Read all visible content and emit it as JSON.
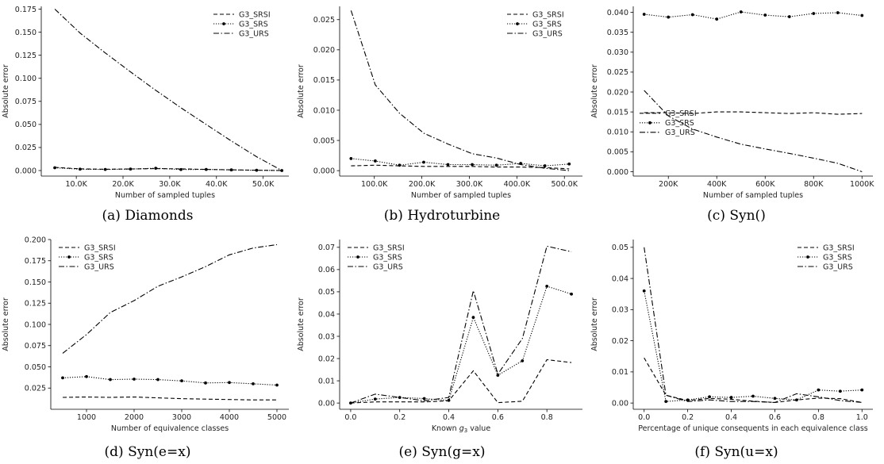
{
  "chart_data": [
    {
      "type": "line",
      "caption": "(a) Diamonds",
      "xlabel": "Number of sampled tuples",
      "ylabel": "Absolute error",
      "xlim": [
        2500,
        55500
      ],
      "ylim": [
        -0.006,
        0.178
      ],
      "xticks": [
        10000,
        20000,
        30000,
        40000,
        50000
      ],
      "xtick_labels": [
        "10.0K",
        "20.0K",
        "30.0K",
        "40.0K",
        "50.0K"
      ],
      "yticks": [
        0,
        0.025,
        0.05,
        0.075,
        0.1,
        0.125,
        0.15,
        0.175
      ],
      "ytick_labels": [
        "0.000",
        "0.025",
        "0.050",
        "0.075",
        "0.100",
        "0.125",
        "0.150",
        "0.175"
      ],
      "legend_position": "top-right",
      "x": [
        5400,
        10800,
        16200,
        21600,
        27000,
        32400,
        37800,
        43200,
        48600,
        54000
      ],
      "series": [
        {
          "name": "G3_SRSI",
          "style": "dashed",
          "values": [
            0.0035,
            0.0018,
            0.0014,
            0.0017,
            0.0021,
            0.0018,
            0.0012,
            0.0008,
            0.0004,
            0.0
          ]
        },
        {
          "name": "G3_SRS",
          "style": "dotted-marker",
          "values": [
            0.003,
            0.0015,
            0.0012,
            0.0016,
            0.0025,
            0.0011,
            0.0012,
            0.0007,
            0.0003,
            0.0
          ]
        },
        {
          "name": "G3_URS",
          "style": "dashdot",
          "values": [
            0.175,
            0.149,
            0.1275,
            0.107,
            0.087,
            0.068,
            0.05,
            0.032,
            0.015,
            0.0
          ]
        }
      ]
    },
    {
      "type": "line",
      "caption": "(b) Hydroturbine",
      "xlabel": "Number of sampled tuples",
      "ylabel": "Absolute error",
      "xlim": [
        27000,
        538000
      ],
      "ylim": [
        -0.0009,
        0.0272
      ],
      "xticks": [
        100000,
        200000,
        300000,
        400000,
        500000
      ],
      "xtick_labels": [
        "100.0K",
        "200.0K",
        "300.0K",
        "400.0K",
        "500.0K"
      ],
      "yticks": [
        0,
        0.005,
        0.01,
        0.015,
        0.02,
        0.025
      ],
      "ytick_labels": [
        "0.000",
        "0.005",
        "0.010",
        "0.015",
        "0.020",
        "0.025"
      ],
      "legend_position": "top-right",
      "x": [
        51000,
        102000,
        153000,
        204000,
        255000,
        306000,
        357000,
        408000,
        459000,
        510000
      ],
      "series": [
        {
          "name": "G3_SRSI",
          "style": "dashed",
          "values": [
            0.0008,
            0.0009,
            0.0008,
            0.0007,
            0.0007,
            0.0007,
            0.0006,
            0.0006,
            0.0005,
            0.0003
          ]
        },
        {
          "name": "G3_SRS",
          "style": "dotted-marker",
          "values": [
            0.002,
            0.0016,
            0.0009,
            0.0014,
            0.001,
            0.001,
            0.0009,
            0.0012,
            0.0008,
            0.0011
          ]
        },
        {
          "name": "G3_URS",
          "style": "dashdot",
          "values": [
            0.0265,
            0.0142,
            0.0095,
            0.0062,
            0.0044,
            0.0028,
            0.0021,
            0.001,
            0.0004,
            0.0
          ]
        }
      ]
    },
    {
      "type": "line",
      "caption": "(c) Syn()",
      "xlabel": "Number of sampled tuples",
      "ylabel": "Absolute error",
      "xlim": [
        55000,
        1045000
      ],
      "ylim": [
        -0.0011,
        0.0415
      ],
      "xticks": [
        200000,
        400000,
        600000,
        800000,
        1000000
      ],
      "xtick_labels": [
        "200K",
        "400K",
        "600K",
        "800K",
        "1000K"
      ],
      "yticks": [
        0,
        0.005,
        0.01,
        0.015,
        0.02,
        0.025,
        0.03,
        0.035,
        0.04
      ],
      "ytick_labels": [
        "0.000",
        "0.005",
        "0.010",
        "0.015",
        "0.020",
        "0.025",
        "0.030",
        "0.035",
        "0.040"
      ],
      "legend_position": "middle-left",
      "x": [
        100000,
        200000,
        300000,
        400000,
        500000,
        600000,
        700000,
        800000,
        900000,
        1000000
      ],
      "series": [
        {
          "name": "G3_SRSI",
          "style": "dashed",
          "values": [
            0.0148,
            0.0148,
            0.0146,
            0.015,
            0.015,
            0.0148,
            0.0146,
            0.0148,
            0.0144,
            0.0146
          ]
        },
        {
          "name": "G3_SRS",
          "style": "dotted-marker",
          "values": [
            0.0395,
            0.0388,
            0.0394,
            0.0383,
            0.0401,
            0.0393,
            0.0389,
            0.0397,
            0.0399,
            0.0392
          ]
        },
        {
          "name": "G3_URS",
          "style": "dashdot",
          "values": [
            0.0204,
            0.014,
            0.0107,
            0.0087,
            0.0069,
            0.0057,
            0.0046,
            0.0034,
            0.0021,
            0.0
          ]
        }
      ]
    },
    {
      "type": "line",
      "caption": "(d) Syn(e=x)",
      "xlabel": "Number of equivalence classes",
      "ylabel": "Absolute error",
      "xlim": [
        250,
        5250
      ],
      "ylim": [
        0,
        0.2
      ],
      "xticks": [
        1000,
        2000,
        3000,
        4000,
        5000
      ],
      "xtick_labels": [
        "1000",
        "2000",
        "3000",
        "4000",
        "5000"
      ],
      "yticks": [
        0.025,
        0.05,
        0.075,
        0.1,
        0.125,
        0.15,
        0.175,
        0.2
      ],
      "ytick_labels": [
        "0.025",
        "0.050",
        "0.075",
        "0.100",
        "0.125",
        "0.150",
        "0.175",
        "0.200"
      ],
      "legend_position": "top-left",
      "x": [
        500,
        1000,
        1500,
        2000,
        2500,
        3000,
        3500,
        4000,
        4500,
        5000
      ],
      "series": [
        {
          "name": "G3_SRSI",
          "style": "dashed",
          "values": [
            0.014,
            0.0145,
            0.014,
            0.0145,
            0.0135,
            0.0125,
            0.012,
            0.0115,
            0.011,
            0.011
          ]
        },
        {
          "name": "G3_SRS",
          "style": "dotted-marker",
          "values": [
            0.037,
            0.0385,
            0.035,
            0.0355,
            0.035,
            0.0335,
            0.031,
            0.0315,
            0.03,
            0.0285
          ]
        },
        {
          "name": "G3_URS",
          "style": "dashdot",
          "values": [
            0.066,
            0.088,
            0.114,
            0.128,
            0.145,
            0.156,
            0.168,
            0.182,
            0.19,
            0.194
          ]
        }
      ]
    },
    {
      "type": "line",
      "caption": "(e) Syn(g=x)",
      "xlabel": "Known g_3 value",
      "ylabel": "Absolute error",
      "xlim": [
        -0.045,
        0.945
      ],
      "ylim": [
        -0.0028,
        0.0735
      ],
      "xticks": [
        0,
        0.2,
        0.4,
        0.6,
        0.8
      ],
      "xtick_labels": [
        "0.0",
        "0.2",
        "0.4",
        "0.6",
        "0.8"
      ],
      "yticks": [
        0,
        0.01,
        0.02,
        0.03,
        0.04,
        0.05,
        0.06,
        0.07
      ],
      "ytick_labels": [
        "0.00",
        "0.01",
        "0.02",
        "0.03",
        "0.04",
        "0.05",
        "0.06",
        "0.07"
      ],
      "legend_position": "top-left",
      "x": [
        0,
        0.1,
        0.2,
        0.3,
        0.4,
        0.5,
        0.6,
        0.7,
        0.8,
        0.9
      ],
      "series": [
        {
          "name": "G3_SRSI",
          "style": "dashed",
          "values": [
            0.0,
            0.0005,
            0.0005,
            0.0005,
            0.001,
            0.0145,
            0.0002,
            0.0008,
            0.0195,
            0.0182
          ]
        },
        {
          "name": "G3_SRS",
          "style": "dotted-marker",
          "values": [
            0.0,
            0.0018,
            0.0025,
            0.002,
            0.0012,
            0.0385,
            0.0125,
            0.019,
            0.0525,
            0.049
          ]
        },
        {
          "name": "G3_URS",
          "style": "dashdot",
          "values": [
            0.0,
            0.004,
            0.0025,
            0.001,
            0.0025,
            0.0505,
            0.013,
            0.029,
            0.0705,
            0.068
          ]
        }
      ]
    },
    {
      "type": "line",
      "caption": "(f) Syn(u=x)",
      "xlabel": "Percentage of unique consequents in each equivalence class",
      "ylabel": "Absolute error",
      "xlim": [
        -0.05,
        1.05
      ],
      "ylim": [
        -0.002,
        0.0525
      ],
      "xticks": [
        0,
        0.2,
        0.4,
        0.6,
        0.8,
        1.0
      ],
      "xtick_labels": [
        "0.0",
        "0.2",
        "0.4",
        "0.6",
        "0.8",
        "1.0"
      ],
      "yticks": [
        0,
        0.01,
        0.02,
        0.03,
        0.04,
        0.05
      ],
      "ytick_labels": [
        "0.00",
        "0.01",
        "0.02",
        "0.03",
        "0.04",
        "0.05"
      ],
      "legend_position": "top-right",
      "x": [
        0,
        0.1,
        0.2,
        0.3,
        0.4,
        0.5,
        0.6,
        0.7,
        0.8,
        0.9,
        1.0
      ],
      "series": [
        {
          "name": "G3_SRSI",
          "style": "dashed",
          "values": [
            0.0145,
            0.0025,
            0.0008,
            0.0015,
            0.0012,
            0.0006,
            0.0002,
            0.001,
            0.0016,
            0.0014,
            0.0002
          ]
        },
        {
          "name": "G3_SRS",
          "style": "dotted-marker",
          "values": [
            0.036,
            0.0005,
            0.001,
            0.002,
            0.0018,
            0.0022,
            0.0015,
            0.001,
            0.0042,
            0.0038,
            0.0042
          ]
        },
        {
          "name": "G3_URS",
          "style": "dashdot",
          "values": [
            0.05,
            0.0025,
            0.0005,
            0.001,
            0.0005,
            0.0005,
            0.0002,
            0.003,
            0.002,
            0.0008,
            0.0002
          ]
        }
      ]
    }
  ]
}
